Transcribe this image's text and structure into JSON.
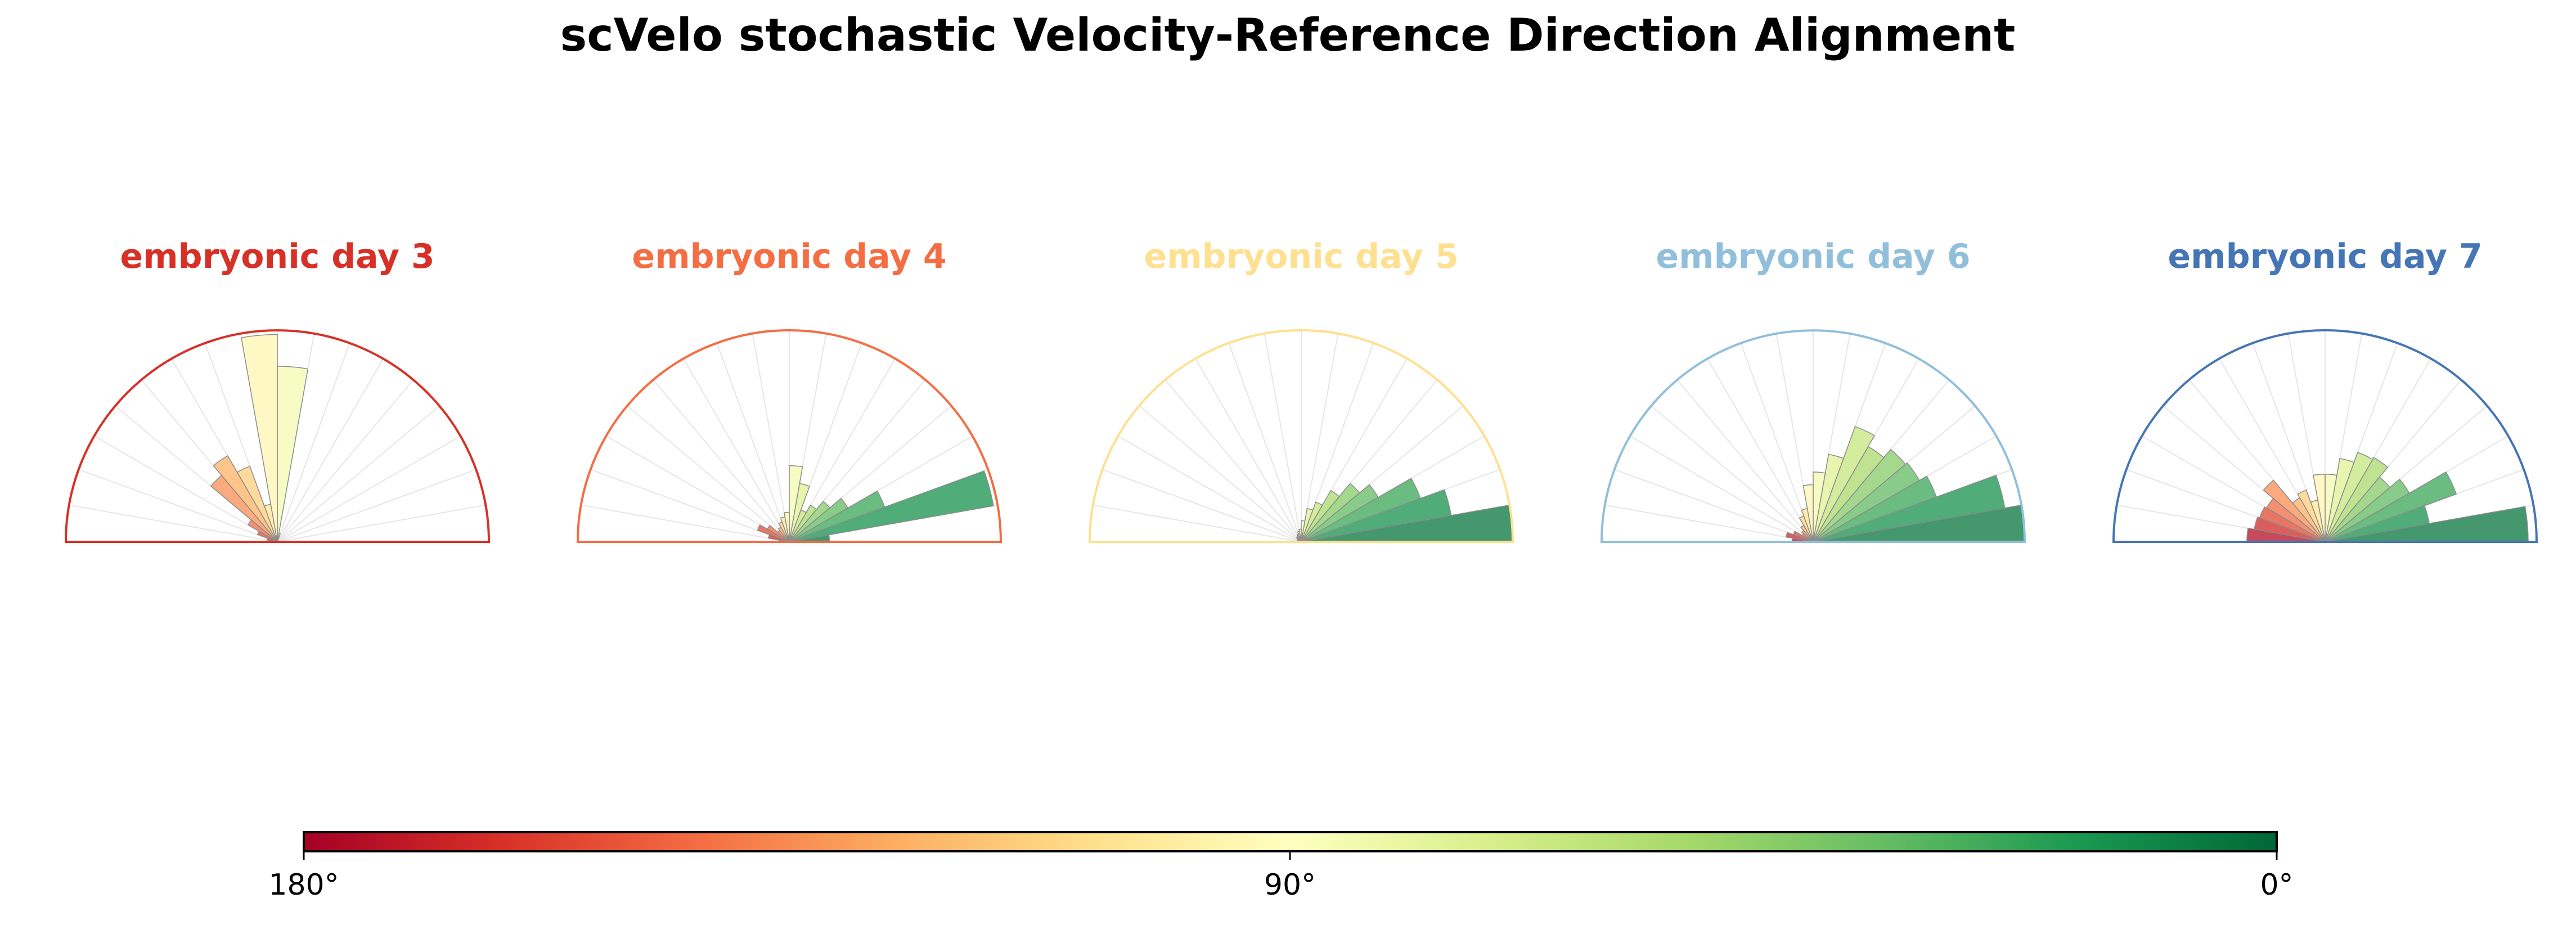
{
  "chart_data": {
    "type": "polar-histogram",
    "title": "scVelo stochastic Velocity-Reference Direction Alignment",
    "angle_unit": "degrees",
    "angle_range": [
      0,
      180
    ],
    "bin_width_deg": 10,
    "bin_centers_deg": [
      5,
      15,
      25,
      35,
      45,
      55,
      65,
      75,
      85,
      95,
      105,
      115,
      125,
      135,
      145,
      155,
      165,
      175
    ],
    "value_unit": "relative frequency (fraction of panel maximum)",
    "panels": [
      {
        "title": "embryonic day 3",
        "color": "#d73027",
        "values": [
          0,
          0,
          0,
          0,
          0,
          0,
          0,
          0.04,
          0.83,
          0.98,
          0.18,
          0.38,
          0.47,
          0.41,
          0.16,
          0.1,
          0.05,
          0.02
        ]
      },
      {
        "title": "embryonic day 4",
        "color": "#f46d43",
        "values": [
          0.19,
          0.98,
          0.48,
          0.32,
          0.25,
          0.2,
          0.16,
          0.28,
          0.36,
          0.14,
          0.12,
          0.1,
          0.08,
          0.07,
          0.12,
          0.16,
          0.1,
          0.05
        ]
      },
      {
        "title": "embryonic day 5",
        "color": "#fee090",
        "values": [
          1.0,
          0.72,
          0.6,
          0.42,
          0.36,
          0.28,
          0.2,
          0.16,
          0.1,
          0.06,
          0.05,
          0.04,
          0.03,
          0.03,
          0.02,
          0.02,
          0.01,
          0.01
        ]
      },
      {
        "title": "embryonic day 6",
        "color": "#91bfdb",
        "values": [
          1.0,
          0.92,
          0.62,
          0.58,
          0.57,
          0.52,
          0.58,
          0.42,
          0.33,
          0.27,
          0.16,
          0.13,
          0.09,
          0.07,
          0.06,
          0.1,
          0.13,
          0.1
        ]
      },
      {
        "title": "embryonic day 7",
        "color": "#4575b4",
        "values": [
          0.96,
          0.5,
          0.66,
          0.46,
          0.4,
          0.46,
          0.45,
          0.4,
          0.32,
          0.32,
          0.2,
          0.26,
          0.24,
          0.38,
          0.32,
          0.33,
          0.34,
          0.37
        ]
      }
    ],
    "colorbar": {
      "label_180": "180°",
      "label_90": "90°",
      "label_0": "0°",
      "colormap": "RdYlGn",
      "stops": [
        "#a50026",
        "#d73027",
        "#f46d43",
        "#fdae61",
        "#fee08b",
        "#ffffbf",
        "#d9ef8b",
        "#a6d96a",
        "#66bd63",
        "#1a9850",
        "#006837"
      ]
    }
  }
}
